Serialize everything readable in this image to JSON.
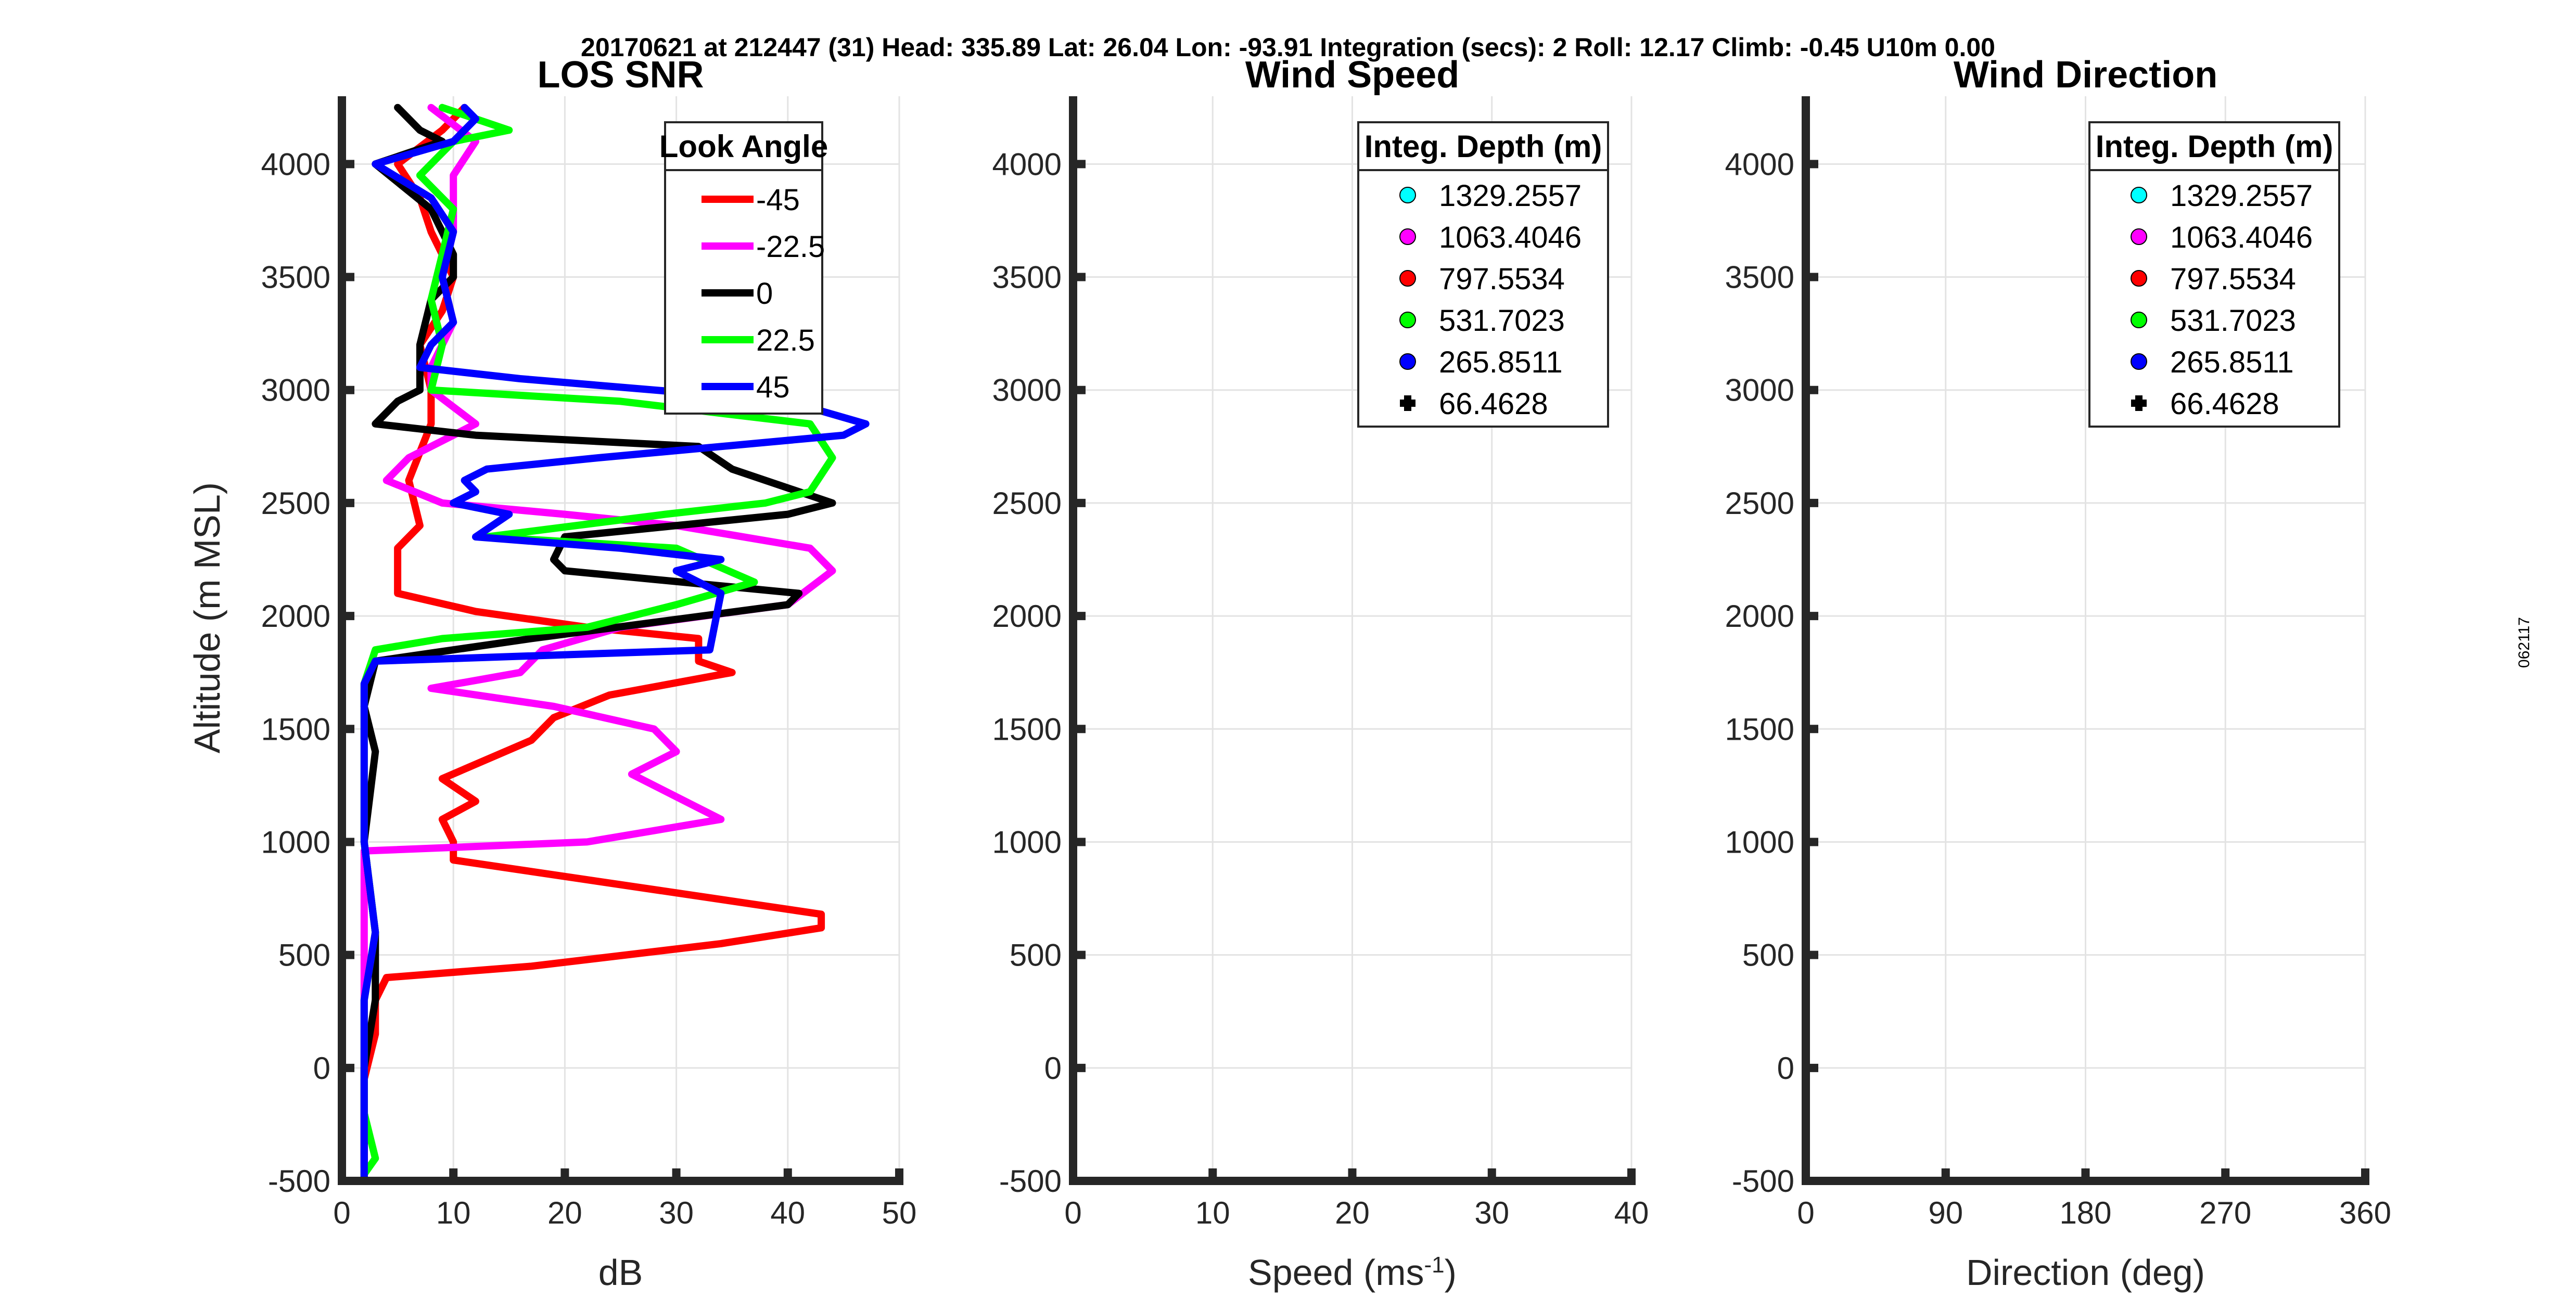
{
  "header": {
    "text": "20170621 at 212447 (31)  Head: 335.89  Lat: 26.04  Lon: -93.91  Integration (secs): 2  Roll: 12.17  Climb: -0.45  U10m 0.00"
  },
  "side_label": "062117",
  "colors": {
    "axis": "#262626",
    "grid": "#e3e3e3",
    "red": "#ff0000",
    "magenta": "#ff00ff",
    "black": "#000000",
    "green": "#00ff00",
    "blue": "#0000ff",
    "cyan": "#00ffff"
  },
  "chart_data": [
    {
      "type": "line",
      "title": "LOS SNR",
      "xlabel": "dB",
      "ylabel": "Altitude (m MSL)",
      "xlim": [
        0,
        50
      ],
      "ylim": [
        -500,
        4300
      ],
      "xticks": [
        0,
        10,
        20,
        30,
        40,
        50
      ],
      "yticks": [
        -500,
        0,
        500,
        1000,
        1500,
        2000,
        2500,
        3000,
        3500,
        4000
      ],
      "grid": true,
      "legend": {
        "title": "Look Angle",
        "location": "top-right",
        "entries": [
          "-45",
          "-22.5",
          "0",
          "22.5",
          "45"
        ]
      },
      "series": [
        {
          "name": "-45",
          "color": "#ff0000",
          "points": [
            [
              2,
              -440
            ],
            [
              2,
              -200
            ],
            [
              2,
              -50
            ],
            [
              3,
              150
            ],
            [
              3,
              300
            ],
            [
              4,
              400
            ],
            [
              17,
              450
            ],
            [
              34,
              550
            ],
            [
              43,
              620
            ],
            [
              43,
              680
            ],
            [
              10,
              920
            ],
            [
              10,
              1000
            ],
            [
              9,
              1100
            ],
            [
              12,
              1180
            ],
            [
              9,
              1280
            ],
            [
              17,
              1450
            ],
            [
              19,
              1550
            ],
            [
              24,
              1650
            ],
            [
              35,
              1750
            ],
            [
              32,
              1800
            ],
            [
              32,
              1900
            ],
            [
              22,
              1950
            ],
            [
              12,
              2020
            ],
            [
              5,
              2100
            ],
            [
              5,
              2200
            ],
            [
              5,
              2300
            ],
            [
              7,
              2400
            ],
            [
              6,
              2600
            ],
            [
              8,
              2850
            ],
            [
              8,
              3000
            ],
            [
              7,
              3200
            ],
            [
              9,
              3350
            ],
            [
              10,
              3500
            ],
            [
              8,
              3700
            ],
            [
              7,
              3850
            ],
            [
              5,
              4000
            ],
            [
              9,
              4150
            ],
            [
              11,
              4250
            ]
          ]
        },
        {
          "name": "-22.5",
          "color": "#ff00ff",
          "points": [
            [
              2,
              -420
            ],
            [
              2,
              -200
            ],
            [
              2,
              0
            ],
            [
              2,
              300
            ],
            [
              2,
              600
            ],
            [
              2,
              960
            ],
            [
              22,
              1000
            ],
            [
              34,
              1100
            ],
            [
              32,
              1150
            ],
            [
              26,
              1300
            ],
            [
              30,
              1400
            ],
            [
              28,
              1500
            ],
            [
              19,
              1600
            ],
            [
              8,
              1680
            ],
            [
              16,
              1750
            ],
            [
              18,
              1850
            ],
            [
              25,
              1950
            ],
            [
              40,
              2050
            ],
            [
              44,
              2200
            ],
            [
              42,
              2300
            ],
            [
              30,
              2400
            ],
            [
              20,
              2450
            ],
            [
              9,
              2500
            ],
            [
              4,
              2600
            ],
            [
              6,
              2700
            ],
            [
              12,
              2850
            ],
            [
              8,
              3000
            ],
            [
              8,
              3100
            ],
            [
              10,
              3300
            ],
            [
              9,
              3500
            ],
            [
              10,
              3700
            ],
            [
              10,
              3950
            ],
            [
              12,
              4100
            ],
            [
              8,
              4250
            ]
          ]
        },
        {
          "name": "0",
          "color": "#000000",
          "points": [
            [
              2,
              -480
            ],
            [
              2,
              -200
            ],
            [
              2,
              0
            ],
            [
              3,
              300
            ],
            [
              3,
              600
            ],
            [
              2,
              1000
            ],
            [
              3,
              1400
            ],
            [
              2,
              1600
            ],
            [
              3,
              1800
            ],
            [
              17,
              1900
            ],
            [
              40,
              2050
            ],
            [
              41,
              2100
            ],
            [
              20,
              2200
            ],
            [
              19,
              2250
            ],
            [
              20,
              2350
            ],
            [
              40,
              2450
            ],
            [
              44,
              2500
            ],
            [
              35,
              2650
            ],
            [
              32,
              2750
            ],
            [
              12,
              2800
            ],
            [
              3,
              2850
            ],
            [
              5,
              2950
            ],
            [
              7,
              3000
            ],
            [
              7,
              3200
            ],
            [
              8,
              3400
            ],
            [
              10,
              3500
            ],
            [
              10,
              3600
            ],
            [
              8,
              3800
            ],
            [
              3,
              4000
            ],
            [
              9,
              4100
            ],
            [
              7,
              4150
            ],
            [
              5,
              4250
            ]
          ]
        },
        {
          "name": "22.5",
          "color": "#00ff00",
          "points": [
            [
              2,
              -470
            ],
            [
              3,
              -400
            ],
            [
              2,
              -200
            ],
            [
              2,
              0
            ],
            [
              2,
              300
            ],
            [
              3,
              600
            ],
            [
              2,
              1000
            ],
            [
              2,
              1400
            ],
            [
              2,
              1700
            ],
            [
              3,
              1850
            ],
            [
              9,
              1900
            ],
            [
              22,
              1950
            ],
            [
              30,
              2050
            ],
            [
              37,
              2150
            ],
            [
              30,
              2300
            ],
            [
              13,
              2350
            ],
            [
              29,
              2450
            ],
            [
              38,
              2500
            ],
            [
              42,
              2550
            ],
            [
              44,
              2700
            ],
            [
              42,
              2850
            ],
            [
              25,
              2950
            ],
            [
              8,
              3000
            ],
            [
              9,
              3200
            ],
            [
              8,
              3400
            ],
            [
              9,
              3600
            ],
            [
              10,
              3800
            ],
            [
              7,
              3950
            ],
            [
              10,
              4100
            ],
            [
              15,
              4150
            ],
            [
              9,
              4250
            ]
          ]
        },
        {
          "name": "45",
          "color": "#0000ff",
          "points": [
            [
              2,
              -480
            ],
            [
              2,
              -200
            ],
            [
              2,
              0
            ],
            [
              2,
              300
            ],
            [
              3,
              600
            ],
            [
              2,
              1000
            ],
            [
              2,
              1400
            ],
            [
              2,
              1700
            ],
            [
              3,
              1800
            ],
            [
              33,
              1850
            ],
            [
              34,
              2100
            ],
            [
              30,
              2200
            ],
            [
              34,
              2250
            ],
            [
              25,
              2300
            ],
            [
              12,
              2350
            ],
            [
              15,
              2450
            ],
            [
              10,
              2500
            ],
            [
              12,
              2550
            ],
            [
              11,
              2600
            ],
            [
              13,
              2650
            ],
            [
              23,
              2700
            ],
            [
              45,
              2800
            ],
            [
              47,
              2850
            ],
            [
              40,
              2950
            ],
            [
              16,
              3050
            ],
            [
              7,
              3100
            ],
            [
              8,
              3200
            ],
            [
              10,
              3300
            ],
            [
              9,
              3500
            ],
            [
              10,
              3700
            ],
            [
              8,
              3850
            ],
            [
              3,
              4000
            ],
            [
              10,
              4100
            ],
            [
              12,
              4200
            ],
            [
              11,
              4250
            ]
          ]
        }
      ]
    },
    {
      "type": "scatter",
      "title": "Wind Speed",
      "xlabel": "Speed (ms",
      "xlabel_sup": "-1",
      "xlabel_end": ")",
      "xlim": [
        0,
        40
      ],
      "ylim": [
        -500,
        4300
      ],
      "xticks": [
        0,
        10,
        20,
        30,
        40
      ],
      "yticks": [
        -500,
        0,
        500,
        1000,
        1500,
        2000,
        2500,
        3000,
        3500,
        4000
      ],
      "grid": true,
      "legend": {
        "title": "Integ. Depth (m)",
        "location": "top-right",
        "entries": [
          {
            "label": "1329.2557",
            "color": "#00ffff",
            "marker": "circle"
          },
          {
            "label": "1063.4046",
            "color": "#ff00ff",
            "marker": "circle"
          },
          {
            "label": "797.5534",
            "color": "#ff0000",
            "marker": "circle"
          },
          {
            "label": "531.7023",
            "color": "#00ff00",
            "marker": "circle"
          },
          {
            "label": "265.8511",
            "color": "#0000ff",
            "marker": "circle"
          },
          {
            "label": "66.4628",
            "color": "#000000",
            "marker": "plus"
          }
        ]
      },
      "series": []
    },
    {
      "type": "scatter",
      "title": "Wind Direction",
      "xlabel": "Direction (deg)",
      "xlim": [
        0,
        360
      ],
      "ylim": [
        -500,
        4300
      ],
      "xticks": [
        0,
        90,
        180,
        270,
        360
      ],
      "yticks": [
        -500,
        0,
        500,
        1000,
        1500,
        2000,
        2500,
        3000,
        3500,
        4000
      ],
      "grid": true,
      "legend": {
        "title": "Integ. Depth (m)",
        "location": "top-right",
        "entries": [
          {
            "label": "1329.2557",
            "color": "#00ffff",
            "marker": "circle"
          },
          {
            "label": "1063.4046",
            "color": "#ff00ff",
            "marker": "circle"
          },
          {
            "label": "797.5534",
            "color": "#ff0000",
            "marker": "circle"
          },
          {
            "label": "531.7023",
            "color": "#00ff00",
            "marker": "circle"
          },
          {
            "label": "265.8511",
            "color": "#0000ff",
            "marker": "circle"
          },
          {
            "label": "66.4628",
            "color": "#000000",
            "marker": "plus"
          }
        ]
      },
      "series": []
    }
  ]
}
